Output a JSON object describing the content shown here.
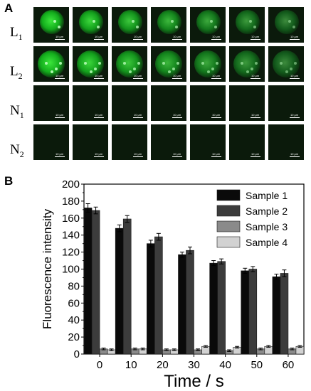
{
  "panel_a": {
    "letter": "A",
    "rows": [
      {
        "letter": "L",
        "sub": "1",
        "signal": "bright"
      },
      {
        "letter": "L",
        "sub": "2",
        "signal": "bright"
      },
      {
        "letter": "N",
        "sub": "1",
        "signal": "none"
      },
      {
        "letter": "N",
        "sub": "2",
        "signal": "none"
      }
    ],
    "columns": 7,
    "scale_bar_label": "10 μm"
  },
  "panel_b": {
    "letter": "B"
  },
  "chart_data": {
    "type": "bar",
    "xlabel": "Time / s",
    "ylabel": "Fluorescence intensity",
    "categories": [
      "0",
      "10",
      "20",
      "30",
      "40",
      "50",
      "60"
    ],
    "ylim": [
      0,
      200
    ],
    "yticks": [
      0,
      20,
      40,
      60,
      80,
      100,
      120,
      140,
      160,
      180,
      200
    ],
    "legend_position": "top-right",
    "series": [
      {
        "name": "Sample 1",
        "color": "#0a0a0a",
        "values": [
          172,
          148,
          130,
          117,
          107,
          98,
          91
        ],
        "errors": [
          5,
          4,
          4,
          3,
          3,
          3,
          3
        ]
      },
      {
        "name": "Sample 2",
        "color": "#3c3c3c",
        "values": [
          169,
          159,
          138,
          122,
          109,
          100,
          95
        ],
        "errors": [
          4,
          4,
          4,
          4,
          3,
          3,
          4
        ]
      },
      {
        "name": "Sample 3",
        "color": "#8a8a8a",
        "values": [
          6,
          6,
          5,
          5,
          4,
          6,
          6
        ],
        "errors": [
          1,
          1,
          1,
          1,
          1,
          1,
          1
        ]
      },
      {
        "name": "Sample 4",
        "color": "#d2d2d2",
        "values": [
          5,
          6,
          5,
          9,
          8,
          9,
          9
        ],
        "errors": [
          1,
          1,
          1,
          1,
          1,
          1,
          1
        ]
      }
    ]
  }
}
